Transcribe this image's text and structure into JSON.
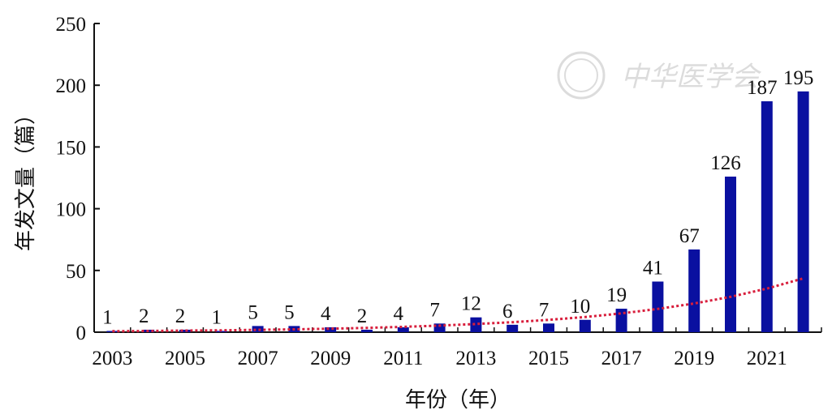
{
  "chart_data": {
    "type": "bar",
    "x": [
      2003,
      2004,
      2005,
      2006,
      2007,
      2008,
      2009,
      2010,
      2011,
      2012,
      2013,
      2014,
      2015,
      2016,
      2017,
      2018,
      2019,
      2020,
      2021,
      2022
    ],
    "values": [
      1,
      2,
      2,
      1,
      5,
      5,
      4,
      2,
      4,
      7,
      12,
      6,
      7,
      10,
      19,
      41,
      67,
      126,
      187,
      195
    ],
    "data_labels": [
      "1",
      "2",
      "2",
      "1",
      "5",
      "5",
      "4",
      "2",
      "4",
      "7",
      "12",
      "6",
      "7",
      "10",
      "19",
      "41",
      "67",
      "126",
      "187",
      "195"
    ],
    "x_tick_labels": [
      "2003",
      "2005",
      "2007",
      "2009",
      "2011",
      "2013",
      "2015",
      "2017",
      "2019",
      "2021"
    ],
    "y_ticks": [
      0,
      50,
      100,
      150,
      200,
      250
    ],
    "y_tick_labels": [
      "0",
      "50",
      "100",
      "150",
      "200",
      "250"
    ],
    "ylim": [
      0,
      250
    ],
    "xlabel": "年份（年）",
    "ylabel": "年发文量（篇）",
    "title": "",
    "grid": false,
    "trendline": {
      "type": "exponential",
      "style": "dotted",
      "values": [
        0.8,
        1.0,
        1.3,
        1.5,
        1.9,
        2.3,
        2.8,
        3.5,
        4.3,
        5.3,
        6.6,
        8.1,
        10.0,
        12.3,
        15.2,
        18.8,
        23.2,
        28.6,
        35.3,
        43.6
      ]
    },
    "colors": {
      "bar": "#0a10a0",
      "trend": "#d81e3c",
      "axis": "#111111"
    }
  },
  "watermark": {
    "text": "中华医学会"
  }
}
